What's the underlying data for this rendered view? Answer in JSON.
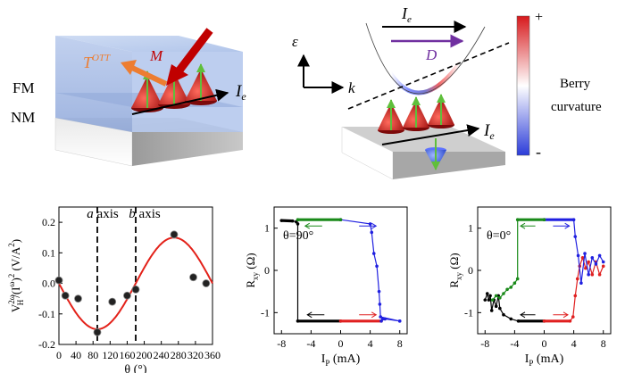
{
  "panel_a": {
    "label_fm": "FM",
    "label_nm": "NM",
    "label_totT": "T",
    "label_totSup": "OTT",
    "label_m": "M",
    "label_ie": "I",
    "label_ie_sub": "e"
  },
  "panel_b": {
    "axis_e": "ε",
    "axis_k": "k",
    "label_ie": "I",
    "label_ie_sub": "e",
    "label_d": "D",
    "label_ie2": "I",
    "label_ie2_sub": "e",
    "colorbar_plus": "+",
    "colorbar_minus": "-",
    "colorbar_label1": "Berry",
    "colorbar_label2": "curvature",
    "colors": {
      "positive": "#d7191c",
      "negative": "#2b3cd9",
      "neutral": "#ffffff",
      "d_arrow": "#7030a0",
      "t_arrow": "#ed7d31"
    }
  },
  "chart_data": [
    {
      "type": "scatter",
      "ylabel_main": "V",
      "ylabel_sup1": "2ω",
      "ylabel_sub1": "H",
      "ylabel_mid": "/(I",
      "ylabel_sup2": "ω",
      "ylabel_end": ")",
      "ylabel_sup3": "2",
      "ylabel_unit": " (V/A",
      "ylabel_unit_sup": "2",
      "ylabel_unit_end": ")",
      "xlabel": "θ (°)",
      "xlim": [
        0,
        360
      ],
      "ylim": [
        -0.2,
        0.25
      ],
      "xticks": [
        "0",
        "40",
        "80",
        "120",
        "160",
        "200",
        "240",
        "280",
        "320",
        "360"
      ],
      "yticks": [
        "0.2",
        "0.1",
        "0.0",
        "-0.1",
        "-0.2"
      ],
      "annotation_a": "a",
      "annotation_a_rest": " axis",
      "annotation_b": "b",
      "annotation_b_rest": " axis",
      "vlines": [
        90,
        180
      ],
      "points": [
        [
          0,
          0.01
        ],
        [
          15,
          -0.04
        ],
        [
          45,
          -0.05
        ],
        [
          90,
          -0.16
        ],
        [
          125,
          -0.06
        ],
        [
          160,
          -0.04
        ],
        [
          180,
          -0.02
        ],
        [
          270,
          0.16
        ],
        [
          315,
          0.02
        ],
        [
          345,
          0.0
        ]
      ],
      "fit": {
        "amplitude": 0.15,
        "phase_deg": 90,
        "color": "#e32119"
      }
    },
    {
      "type": "line",
      "annotation": "θ=90°",
      "ylabel_main": "R",
      "ylabel_sub": "xy",
      "ylabel_unit": " (Ω)",
      "xlabel_main": "I",
      "xlabel_sub": "P",
      "xlabel_unit": " (mA)",
      "xlim": [
        -9,
        9
      ],
      "ylim": [
        -1.5,
        1.5
      ],
      "xticks": [
        "-8",
        "-4",
        "0",
        "4",
        "8"
      ],
      "yticks": [
        "1",
        "0",
        "-1"
      ],
      "series": [
        {
          "color": "#000000",
          "values": [
            [
              -8,
              1.18
            ],
            [
              -6.5,
              1.17
            ],
            [
              -6.0,
              1.15
            ],
            [
              -5.8,
              1.1
            ],
            [
              -5.8,
              -1.2
            ],
            [
              0,
              -1.2
            ]
          ]
        },
        {
          "color": "#e02020",
          "values": [
            [
              0,
              -1.2
            ],
            [
              5.5,
              -1.2
            ]
          ]
        },
        {
          "color": "#2020e0",
          "values": [
            [
              5.5,
              -1.2
            ],
            [
              5.7,
              -1.15
            ],
            [
              6,
              -1.15
            ],
            [
              8,
              -1.2
            ],
            [
              8,
              -1.2
            ],
            [
              5.4,
              -1.1
            ],
            [
              5.3,
              -0.8
            ],
            [
              5.2,
              -0.5
            ],
            [
              4.9,
              0.1
            ],
            [
              4.5,
              0.4
            ],
            [
              4.2,
              0.9
            ],
            [
              4,
              1.1
            ],
            [
              0,
              1.2
            ]
          ]
        },
        {
          "color": "#1a8a1a",
          "values": [
            [
              0,
              1.2
            ],
            [
              -5.8,
              1.2
            ]
          ]
        }
      ],
      "arrows": [
        {
          "from": [
            -2.5,
            1.2
          ],
          "to": [
            -4.8,
            1.2
          ],
          "color": "#1a8a1a"
        },
        {
          "from": [
            2.5,
            1.2
          ],
          "to": [
            4.8,
            1.2
          ],
          "color": "#2020e0"
        },
        {
          "from": [
            -2.2,
            -1.2
          ],
          "to": [
            -4.5,
            -1.2
          ],
          "color": "#000000"
        },
        {
          "from": [
            2.5,
            -1.2
          ],
          "to": [
            4.8,
            -1.2
          ],
          "color": "#e02020"
        }
      ]
    },
    {
      "type": "line",
      "annotation": "θ=0°",
      "ylabel_main": "R",
      "ylabel_sub": "xy",
      "ylabel_unit": " (Ω)",
      "xlabel_main": "I",
      "xlabel_sub": "P",
      "xlabel_unit": " (mA)",
      "xlim": [
        -9,
        9
      ],
      "ylim": [
        -1.5,
        1.5
      ],
      "xticks": [
        "-8",
        "-4",
        "0",
        "4",
        "8"
      ],
      "yticks": [
        "1",
        "0",
        "-1"
      ],
      "series": [
        {
          "color": "#000000",
          "values": [
            [
              -8,
              -0.7
            ],
            [
              -7.7,
              -0.55
            ],
            [
              -7.5,
              -0.7
            ],
            [
              -7.3,
              -0.6
            ],
            [
              -7.1,
              -0.95
            ],
            [
              -6.8,
              -0.7
            ],
            [
              -6.5,
              -0.85
            ],
            [
              -6.2,
              -0.6
            ],
            [
              -6.0,
              -0.9
            ],
            [
              -5.5,
              -1.05
            ],
            [
              -4.5,
              -1.15
            ],
            [
              -3.5,
              -1.2
            ],
            [
              0,
              -1.2
            ]
          ]
        },
        {
          "color": "#e02020",
          "values": [
            [
              0,
              -1.2
            ],
            [
              3.5,
              -1.2
            ],
            [
              3.9,
              -1.1
            ],
            [
              4.2,
              -0.6
            ],
            [
              4.5,
              -0.2
            ],
            [
              4.8,
              0.1
            ],
            [
              5.2,
              0.3
            ],
            [
              5.6,
              0.05
            ],
            [
              6,
              0.2
            ],
            [
              6.5,
              -0.1
            ],
            [
              7,
              0.2
            ],
            [
              7.5,
              -0.1
            ],
            [
              8,
              0.1
            ]
          ]
        },
        {
          "color": "#2020e0",
          "values": [
            [
              8,
              0.2
            ],
            [
              7.5,
              0.35
            ],
            [
              7,
              0.15
            ],
            [
              6.5,
              0.3
            ],
            [
              6,
              -0.1
            ],
            [
              5.5,
              0.4
            ],
            [
              5,
              -0.3
            ],
            [
              4.6,
              0.35
            ],
            [
              4.2,
              0.8
            ],
            [
              4,
              1.2
            ],
            [
              0,
              1.2
            ]
          ]
        },
        {
          "color": "#1a8a1a",
          "values": [
            [
              0,
              1.2
            ],
            [
              -3.6,
              1.2
            ],
            [
              -3.6,
              -0.2
            ],
            [
              -4.0,
              -0.3
            ],
            [
              -4.5,
              -0.4
            ],
            [
              -5.0,
              -0.45
            ],
            [
              -5.5,
              -0.55
            ],
            [
              -6.0,
              -0.65
            ],
            [
              -6.5,
              -0.6
            ],
            [
              -7.0,
              -0.7
            ]
          ]
        }
      ],
      "arrows": [
        {
          "from": [
            -1.2,
            1.2
          ],
          "to": [
            -3.2,
            1.2
          ],
          "color": "#1a8a1a"
        },
        {
          "from": [
            1.2,
            1.2
          ],
          "to": [
            3.4,
            1.2
          ],
          "color": "#2020e0"
        },
        {
          "from": [
            -1.2,
            -1.2
          ],
          "to": [
            -3.2,
            -1.2
          ],
          "color": "#000000"
        },
        {
          "from": [
            1.2,
            -1.2
          ],
          "to": [
            3.2,
            -1.2
          ],
          "color": "#e02020"
        }
      ]
    }
  ]
}
